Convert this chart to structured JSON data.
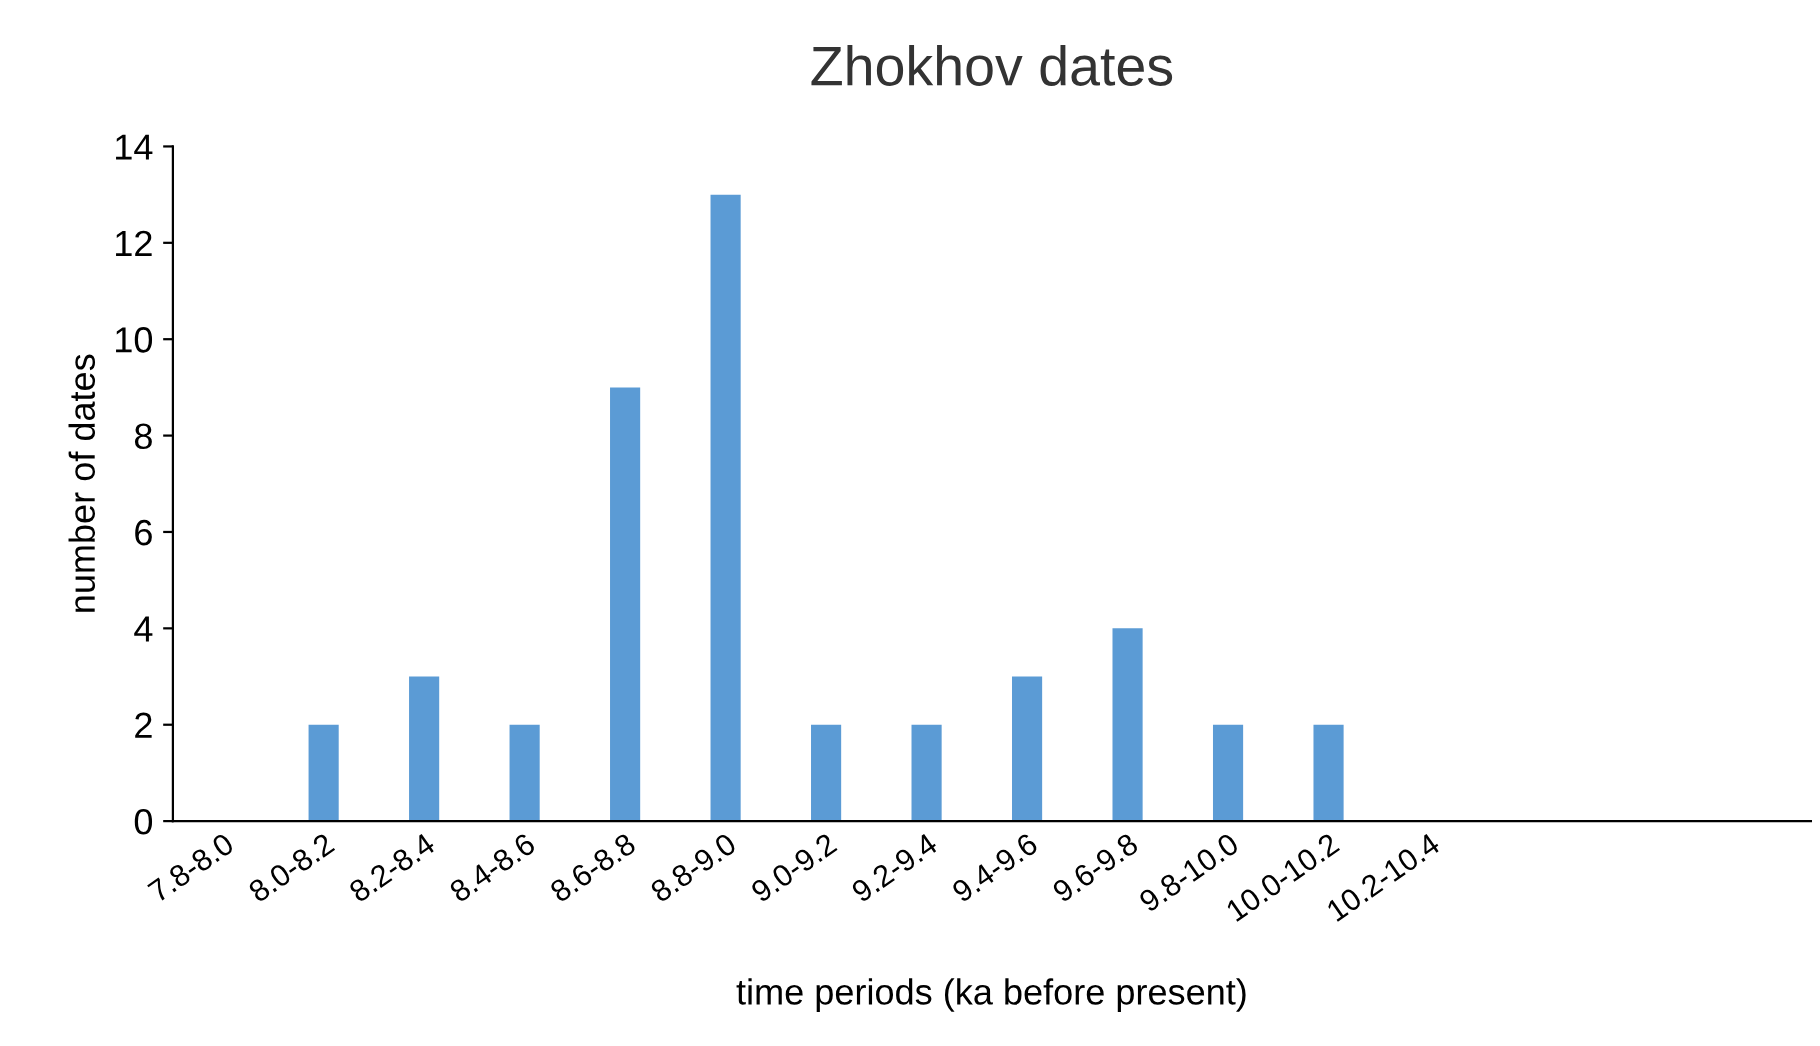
{
  "chart_data": {
    "type": "bar",
    "title": "Zhokhov dates",
    "xlabel": "time periods (ka before present)",
    "ylabel": "number of dates",
    "categories": [
      "7.8-8.0",
      "8.0-8.2",
      "8.2-8.4",
      "8.4-8.6",
      "8.6-8.8",
      "8.8-9.0",
      "9.0-9.2",
      "9.2-9.4",
      "9.4-9.6",
      "9.6-9.8",
      "9.8-10.0",
      "10.0-10.2",
      "10.2-10.4",
      null,
      null,
      null
    ],
    "values": [
      0,
      2,
      3,
      2,
      9,
      13,
      2,
      2,
      3,
      4,
      2,
      2,
      0,
      null,
      null,
      null
    ],
    "color": "#5b9bd5",
    "ylim": [
      0,
      14
    ],
    "yticks": [
      0,
      2,
      4,
      6,
      8,
      10,
      12,
      14
    ],
    "grid": false,
    "legend": false
  }
}
